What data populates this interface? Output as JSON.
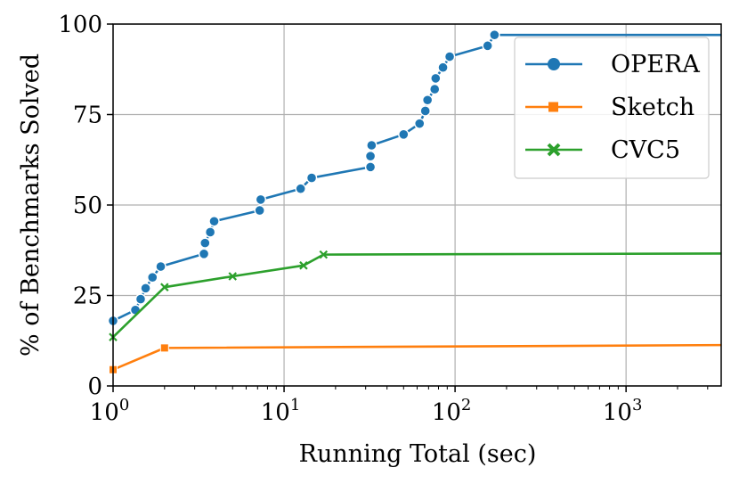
{
  "chart_data": {
    "type": "line",
    "title": "",
    "xlabel": "Running Total (sec)",
    "ylabel": "% of Benchmarks Solved",
    "xscale": "log",
    "xlim": [
      1,
      3600
    ],
    "ylim": [
      0,
      100
    ],
    "xticks": [
      {
        "value": 1,
        "base": "10",
        "exp": "0"
      },
      {
        "value": 10,
        "base": "10",
        "exp": "1"
      },
      {
        "value": 100,
        "base": "10",
        "exp": "2"
      },
      {
        "value": 1000,
        "base": "10",
        "exp": "3"
      }
    ],
    "yticks": [
      {
        "value": 0,
        "label": "0"
      },
      {
        "value": 25,
        "label": "25"
      },
      {
        "value": 50,
        "label": "50"
      },
      {
        "value": 75,
        "label": "75"
      },
      {
        "value": 100,
        "label": "100"
      }
    ],
    "grid": true,
    "legend_position": "top-right",
    "series": [
      {
        "name": "Opera",
        "color": "#1f77b4",
        "marker": "circle",
        "points": [
          [
            1.0,
            18
          ],
          [
            1.35,
            21
          ],
          [
            1.45,
            24
          ],
          [
            1.55,
            27
          ],
          [
            1.7,
            30
          ],
          [
            1.9,
            33
          ],
          [
            3.4,
            36.5
          ],
          [
            3.45,
            39.5
          ],
          [
            3.7,
            42.5
          ],
          [
            3.9,
            45.5
          ],
          [
            7.2,
            48.5
          ],
          [
            7.3,
            51.5
          ],
          [
            12.5,
            54.5
          ],
          [
            14.5,
            57.5
          ],
          [
            32,
            60.5
          ],
          [
            32,
            63.5
          ],
          [
            32.5,
            66.5
          ],
          [
            50,
            69.5
          ],
          [
            62,
            72.5
          ],
          [
            67,
            76
          ],
          [
            69,
            79
          ],
          [
            76,
            82
          ],
          [
            77,
            85
          ],
          [
            85,
            88
          ],
          [
            93,
            91
          ],
          [
            155,
            94
          ],
          [
            170,
            97
          ],
          [
            3600,
            97
          ]
        ]
      },
      {
        "name": "Sketch",
        "color": "#ff7f0e",
        "marker": "square",
        "points": [
          [
            1.0,
            4.5
          ],
          [
            2.0,
            10.5
          ],
          [
            3600,
            11.3
          ]
        ]
      },
      {
        "name": "CVC5",
        "color": "#2ca02c",
        "marker": "x",
        "points": [
          [
            1.0,
            13.5
          ],
          [
            2.0,
            27.3
          ],
          [
            5.0,
            30.3
          ],
          [
            13.0,
            33.3
          ],
          [
            17.0,
            36.3
          ],
          [
            3600,
            36.6
          ]
        ]
      }
    ],
    "legend": [
      {
        "label": "OPERA",
        "series": "Opera"
      },
      {
        "label": "Sketch",
        "series": "Sketch"
      },
      {
        "label": "CVC5",
        "series": "CVC5"
      }
    ]
  }
}
